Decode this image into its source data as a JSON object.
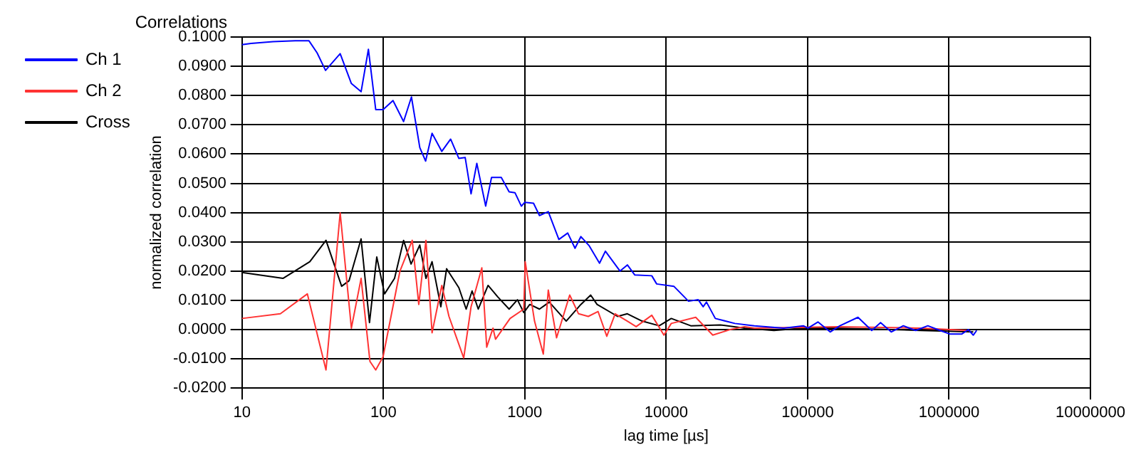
{
  "chart_data": {
    "type": "line",
    "title": "Correlations",
    "xlabel": "lag time [µs]",
    "ylabel": "normalized correlation",
    "log": "x",
    "grid": true,
    "legend": "top left",
    "marker": "none",
    "line_style": "solid",
    "xlim": [
      10,
      10000000
    ],
    "xticks": [
      10,
      100,
      1000,
      10000,
      100000,
      1000000,
      10000000
    ],
    "ylim": [
      -0.02,
      0.1
    ],
    "yticks": [
      {
        "value": -0.02,
        "label": "-0.0200"
      },
      {
        "value": -0.01,
        "label": "-0.0100"
      },
      {
        "value": 0,
        "label": "0.0000"
      },
      {
        "value": 0.01,
        "label": "0.0100"
      },
      {
        "value": 0.02,
        "label": "0.0200"
      },
      {
        "value": 0.03,
        "label": "0.0300"
      },
      {
        "value": 0.04,
        "label": "0.0400"
      },
      {
        "value": 0.05,
        "label": "0.0500"
      },
      {
        "value": 0.06,
        "label": "0.0600"
      },
      {
        "value": 0.07,
        "label": "0.0700"
      },
      {
        "value": 0.08,
        "label": "0.0800"
      },
      {
        "value": 0.09,
        "label": "0.0900"
      },
      {
        "value": 0.1,
        "label": "0.1000"
      }
    ],
    "series": [
      {
        "name": "Ch 1",
        "color": "#0000ff",
        "x": [
          10,
          11.6,
          16.6,
          23.8,
          29.8,
          34,
          39,
          49.5,
          59.4,
          69.6,
          78.4,
          88.3,
          99.6,
          117,
          139,
          158,
          181,
          199,
          221,
          259,
          299,
          342,
          379,
          417,
          458,
          529,
          582,
          682,
          775,
          852,
          946,
          1000,
          1153,
          1270,
          1466,
          1742,
          2012,
          2266,
          2493,
          2858,
          3377,
          3715,
          4717,
          5314,
          5986,
          7907,
          8560,
          11320,
          14380,
          16840,
          18250,
          19270,
          22240,
          30570,
          42060,
          67800,
          93200,
          100700,
          118300,
          144300,
          169200,
          227000,
          284000,
          328000,
          390000,
          475000,
          580000,
          708000,
          863000,
          1010000,
          1233000,
          1370000,
          1483000,
          1567000
        ],
        "values": [
          0.0974,
          0.0978,
          0.0984,
          0.0987,
          0.0987,
          0.0946,
          0.0886,
          0.0943,
          0.0841,
          0.0813,
          0.0958,
          0.0752,
          0.0752,
          0.0783,
          0.0711,
          0.0795,
          0.0622,
          0.0576,
          0.0671,
          0.0609,
          0.0651,
          0.0585,
          0.0588,
          0.0464,
          0.0568,
          0.0422,
          0.052,
          0.052,
          0.0471,
          0.0468,
          0.0422,
          0.0435,
          0.0432,
          0.039,
          0.0403,
          0.0308,
          0.033,
          0.0278,
          0.0318,
          0.0286,
          0.0227,
          0.0268,
          0.02,
          0.0221,
          0.0187,
          0.0184,
          0.0156,
          0.0148,
          0.0097,
          0.0102,
          0.0078,
          0.0094,
          0.0038,
          0.0021,
          0.0013,
          0.0005,
          0.0013,
          0.0005,
          0.0026,
          -0.0008,
          0.0013,
          0.0042,
          -0.0003,
          0.0024,
          -0.0008,
          0.0013,
          -0.0003,
          0.0013,
          -0.0003,
          -0.0015,
          -0.0015,
          0,
          -0.0019,
          -0.0003
        ]
      },
      {
        "name": "Ch 2",
        "color": "#ff3333",
        "x": [
          10,
          18.7,
          29,
          39.3,
          49.5,
          59.4,
          69.6,
          80.4,
          88.3,
          99.5,
          131,
          160,
          178,
          200,
          221,
          259,
          291,
          370,
          417,
          497,
          538,
          596,
          621,
          787,
          984,
          1007,
          1172,
          1352,
          1466,
          1678,
          2078,
          2400,
          2812,
          3296,
          3801,
          4355,
          5310,
          6130,
          7907,
          9640,
          10860,
          16170,
          21340,
          28220,
          35800,
          42060,
          162000,
          284000,
          628000,
          1393000
        ],
        "values": [
          0.0038,
          0.0054,
          0.0122,
          -0.0138,
          0.0399,
          0.0005,
          0.0175,
          -0.0109,
          -0.0138,
          -0.0093,
          0.02,
          0.0305,
          0.0086,
          0.0305,
          -0.0011,
          0.0151,
          0.0045,
          -0.0097,
          0.0078,
          0.0211,
          -0.006,
          0.0005,
          -0.0033,
          0.0038,
          0.007,
          0.0232,
          0.0029,
          -0.0084,
          0.0135,
          -0.0028,
          0.0118,
          0.0054,
          0.0045,
          0.0062,
          -0.0023,
          0.0054,
          0.0029,
          0.001,
          0.0049,
          -0.0019,
          0.0021,
          0.0042,
          -0.0019,
          0,
          0.001,
          0.0005,
          0.001,
          0.0008,
          0.0005,
          -0.0003
        ]
      },
      {
        "name": "Cross",
        "color": "#000000",
        "x": [
          10,
          19.5,
          30.2,
          39.3,
          50.7,
          57.2,
          69.6,
          79.8,
          89.8,
          102,
          120,
          139,
          157,
          181,
          200,
          221,
          255,
          280,
          342,
          385,
          424,
          469,
          550,
          646,
          775,
          887,
          984,
          1085,
          1270,
          1490,
          1963,
          2493,
          2924,
          3243,
          4530,
          5314,
          6750,
          8920,
          10860,
          14920,
          24150,
          35800,
          57800,
          93200,
          162000,
          284000,
          628000,
          1483000
        ],
        "values": [
          0.0195,
          0.0175,
          0.0232,
          0.0305,
          0.0148,
          0.0167,
          0.031,
          0.0024,
          0.0248,
          0.0122,
          0.0175,
          0.0305,
          0.0224,
          0.0289,
          0.0175,
          0.0232,
          0.0078,
          0.0208,
          0.0143,
          0.007,
          0.0132,
          0.007,
          0.0151,
          0.0111,
          0.007,
          0.0102,
          0.0058,
          0.0086,
          0.007,
          0.0094,
          0.0029,
          0.0086,
          0.0118,
          0.0086,
          0.0045,
          0.0054,
          0.0029,
          0.0013,
          0.0038,
          0.0013,
          0.0016,
          0.0005,
          -0.0003,
          0.0005,
          0.0005,
          0.0002,
          -0.0003,
          -0.0008
        ]
      }
    ]
  }
}
